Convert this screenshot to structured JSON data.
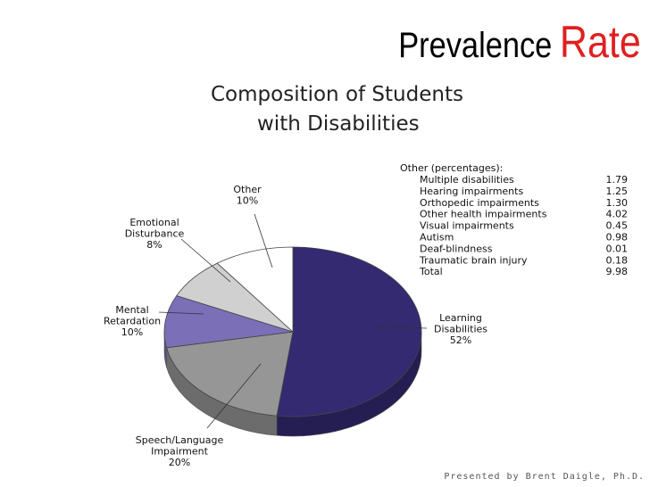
{
  "slide": {
    "title_main": "Prevalence",
    "title_accent": "Rate",
    "footer": "Presented by Brent Daigle, Ph.D."
  },
  "colors": {
    "title_accent": "#e02020",
    "learning": "#332a72",
    "speech": "#969696",
    "mental": "#7b6fb8",
    "emotional": "#d0d0d0",
    "other": "#ffffff"
  },
  "chart_data": {
    "type": "pie",
    "title_line1": "Composition of Students",
    "title_line2": "with Disabilities",
    "slices": [
      {
        "label_lines": [
          "Learning",
          "Disabilities"
        ],
        "percent_label": "52%",
        "value": 52,
        "color": "#332a72"
      },
      {
        "label_lines": [
          "Speech/Language",
          "Impairment"
        ],
        "percent_label": "20%",
        "value": 20,
        "color": "#969696"
      },
      {
        "label_lines": [
          "Mental",
          "Retardation"
        ],
        "percent_label": "10%",
        "value": 10,
        "color": "#7b6fb8"
      },
      {
        "label_lines": [
          "Emotional",
          "Disturbance"
        ],
        "percent_label": "8%",
        "value": 8,
        "color": "#d0d0d0"
      },
      {
        "label_lines": [
          "Other"
        ],
        "percent_label": "10%",
        "value": 10,
        "color": "#ffffff"
      }
    ],
    "other_table": {
      "heading": "Other (percentages):",
      "rows": [
        {
          "label": "Multiple disabilities",
          "value": "1.79"
        },
        {
          "label": "Hearing impairments",
          "value": "1.25"
        },
        {
          "label": "Orthopedic impairments",
          "value": "1.30"
        },
        {
          "label": "Other health impairments",
          "value": "4.02"
        },
        {
          "label": "Visual impairments",
          "value": "0.45"
        },
        {
          "label": "Autism",
          "value": "0.98"
        },
        {
          "label": "Deaf-blindness",
          "value": "0.01"
        },
        {
          "label": "Traumatic brain injury",
          "value": "0.18"
        },
        {
          "label": "Total",
          "value": "9.98"
        }
      ]
    }
  }
}
